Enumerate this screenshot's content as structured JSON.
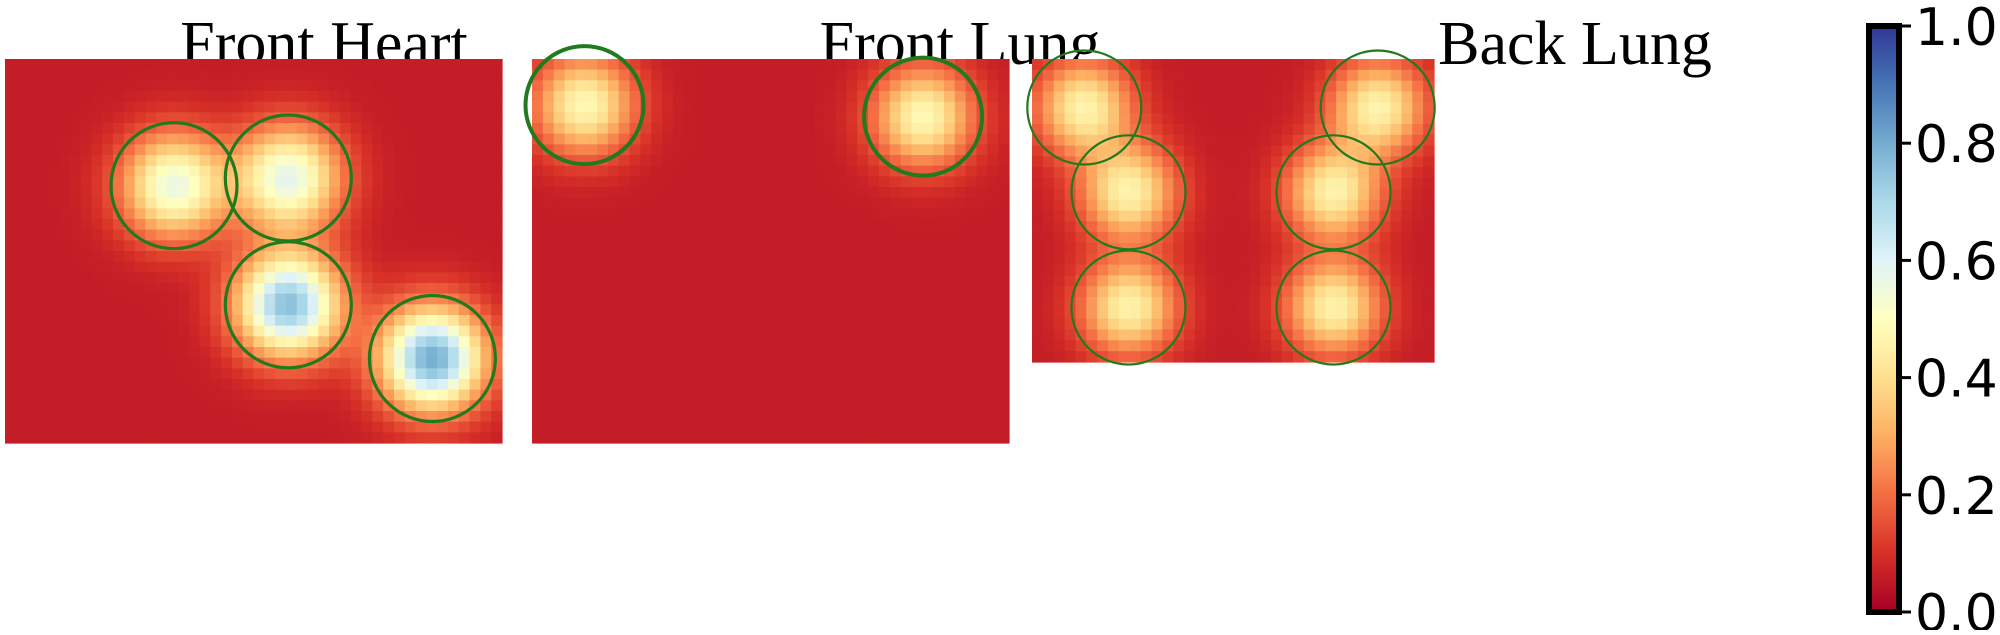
{
  "chart_data": {
    "type": "heatmap",
    "colormap": "RdYlBu",
    "panels": [
      {
        "title": "Front Heart",
        "rows": 36,
        "cols": 46,
        "sites": [
          {
            "x": 0.34,
            "y": 0.33,
            "amp": 0.5,
            "r": 0.126
          },
          {
            "x": 0.57,
            "y": 0.31,
            "amp": 0.52,
            "r": 0.126
          },
          {
            "x": 0.57,
            "y": 0.64,
            "amp": 0.7,
            "r": 0.126
          },
          {
            "x": 0.86,
            "y": 0.78,
            "amp": 0.74,
            "r": 0.126
          }
        ]
      },
      {
        "title": "Front Lung",
        "rows": 36,
        "cols": 44,
        "sites": [
          {
            "x": 0.11,
            "y": 0.12,
            "amp": 0.42,
            "r": 0.124
          },
          {
            "x": 0.82,
            "y": 0.15,
            "amp": 0.42,
            "r": 0.124
          }
        ]
      },
      {
        "title": "Back Lung",
        "rows": 28,
        "cols": 37,
        "sites": [
          {
            "x": 0.13,
            "y": 0.16,
            "amp": 0.4,
            "r": 0.14
          },
          {
            "x": 0.86,
            "y": 0.16,
            "amp": 0.4,
            "r": 0.14
          },
          {
            "x": 0.24,
            "y": 0.44,
            "amp": 0.4,
            "r": 0.14
          },
          {
            "x": 0.75,
            "y": 0.44,
            "amp": 0.4,
            "r": 0.14
          },
          {
            "x": 0.24,
            "y": 0.82,
            "amp": 0.4,
            "r": 0.14
          },
          {
            "x": 0.75,
            "y": 0.82,
            "amp": 0.4,
            "r": 0.14
          }
        ]
      }
    ],
    "colorbar": {
      "min": 0.0,
      "max": 1.0,
      "ticks": [
        "0.0",
        "0.2",
        "0.4",
        "0.6",
        "0.8",
        "1.0"
      ]
    },
    "circle_color": "#217a1c"
  }
}
